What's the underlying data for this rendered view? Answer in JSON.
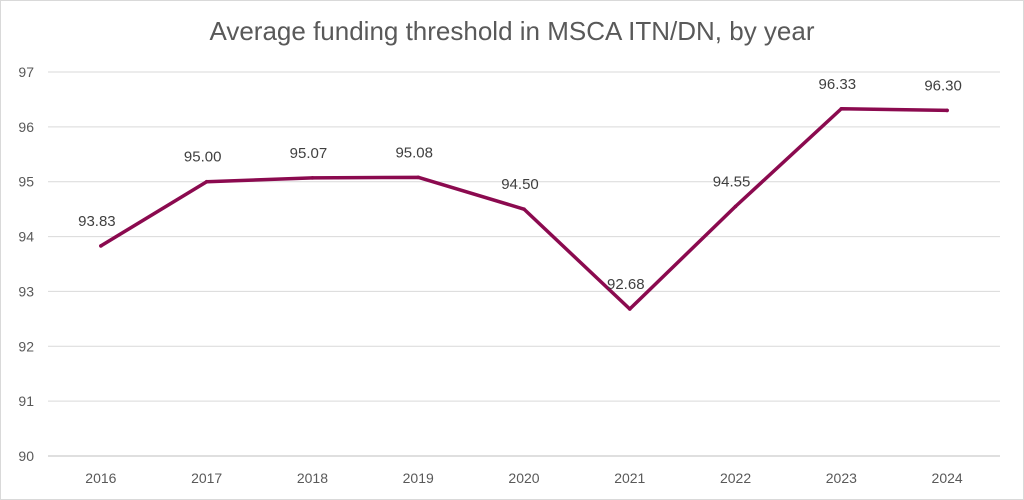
{
  "chart_data": {
    "type": "line",
    "title": "Average funding threshold in MSCA ITN/DN, by year",
    "xlabel": "",
    "ylabel": "",
    "categories": [
      "2016",
      "2017",
      "2018",
      "2019",
      "2020",
      "2021",
      "2022",
      "2023",
      "2024"
    ],
    "series": [
      {
        "values": [
          93.83,
          95.0,
          95.07,
          95.08,
          94.5,
          92.68,
          94.55,
          96.33,
          96.3
        ],
        "labels": [
          "93.83",
          "95.00",
          "95.07",
          "95.08",
          "94.50",
          "92.68",
          "94.55",
          "96.33",
          "96.30"
        ],
        "color": "#8b0a4f"
      }
    ],
    "ylim": [
      90,
      97
    ],
    "yticks": [
      "90",
      "91",
      "92",
      "93",
      "94",
      "95",
      "96",
      "97"
    ],
    "grid": true,
    "legend": "none"
  }
}
